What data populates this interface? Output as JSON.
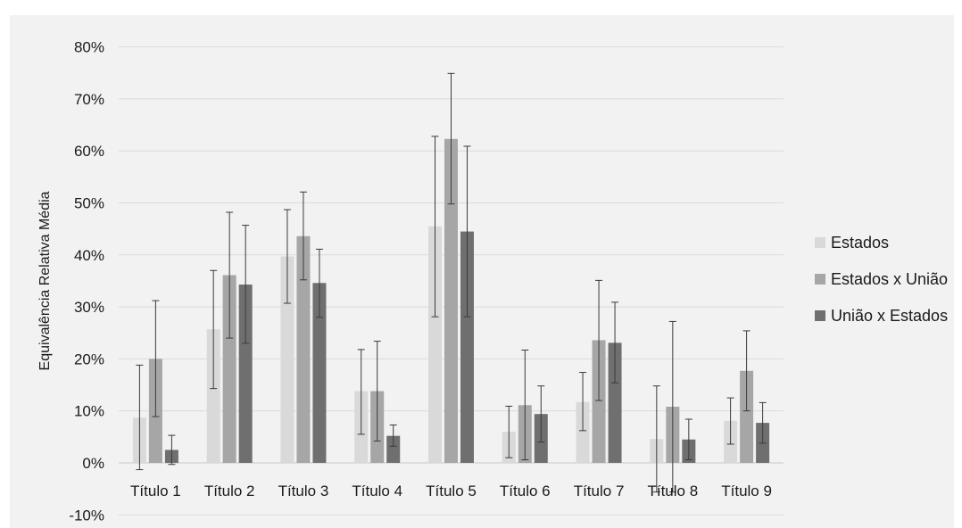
{
  "chart_data": {
    "type": "bar",
    "ylabel": "Equivalência Relativa Média",
    "ylim": [
      -10,
      80
    ],
    "yticks": [
      "-10%",
      "0%",
      "10%",
      "20%",
      "30%",
      "40%",
      "50%",
      "60%",
      "70%",
      "80%"
    ],
    "ytick_values": [
      -10,
      0,
      10,
      20,
      30,
      40,
      50,
      60,
      70,
      80
    ],
    "grid": true,
    "legend_position": "right",
    "categories": [
      "Título 1",
      "Título 2",
      "Título 3",
      "Título 4",
      "Título 5",
      "Título 6",
      "Título 7",
      "Título 8",
      "Título 9"
    ],
    "series": [
      {
        "name": "Estados",
        "color": "#d9d9d9",
        "values": [
          8.7,
          25.7,
          39.7,
          13.8,
          45.5,
          6.0,
          11.7,
          4.6,
          8.1
        ],
        "error_low": [
          -1.3,
          14.3,
          30.7,
          5.5,
          28.1,
          1.0,
          6.2,
          -5.6,
          3.6
        ],
        "error_high": [
          18.8,
          37.0,
          48.7,
          21.8,
          62.8,
          10.9,
          17.4,
          14.8,
          12.5
        ]
      },
      {
        "name": "Estados x União",
        "color": "#a6a6a6",
        "values": [
          20.0,
          36.1,
          43.6,
          13.8,
          62.3,
          11.1,
          23.6,
          10.8,
          17.7
        ],
        "error_low": [
          8.9,
          24.0,
          35.2,
          4.2,
          49.8,
          0.6,
          12.0,
          -5.6,
          10.0
        ],
        "error_high": [
          31.2,
          48.2,
          52.1,
          23.4,
          74.9,
          21.7,
          35.1,
          27.2,
          25.4
        ]
      },
      {
        "name": "União x Estados",
        "color": "#6f6f6f",
        "values": [
          2.5,
          34.3,
          34.6,
          5.2,
          44.5,
          9.4,
          23.1,
          4.5,
          7.7
        ],
        "error_low": [
          -0.3,
          23.0,
          28.0,
          3.2,
          28.1,
          4.0,
          15.4,
          0.6,
          3.8
        ],
        "error_high": [
          5.3,
          45.7,
          41.1,
          7.3,
          60.9,
          14.8,
          30.9,
          8.4,
          11.6
        ]
      }
    ]
  }
}
